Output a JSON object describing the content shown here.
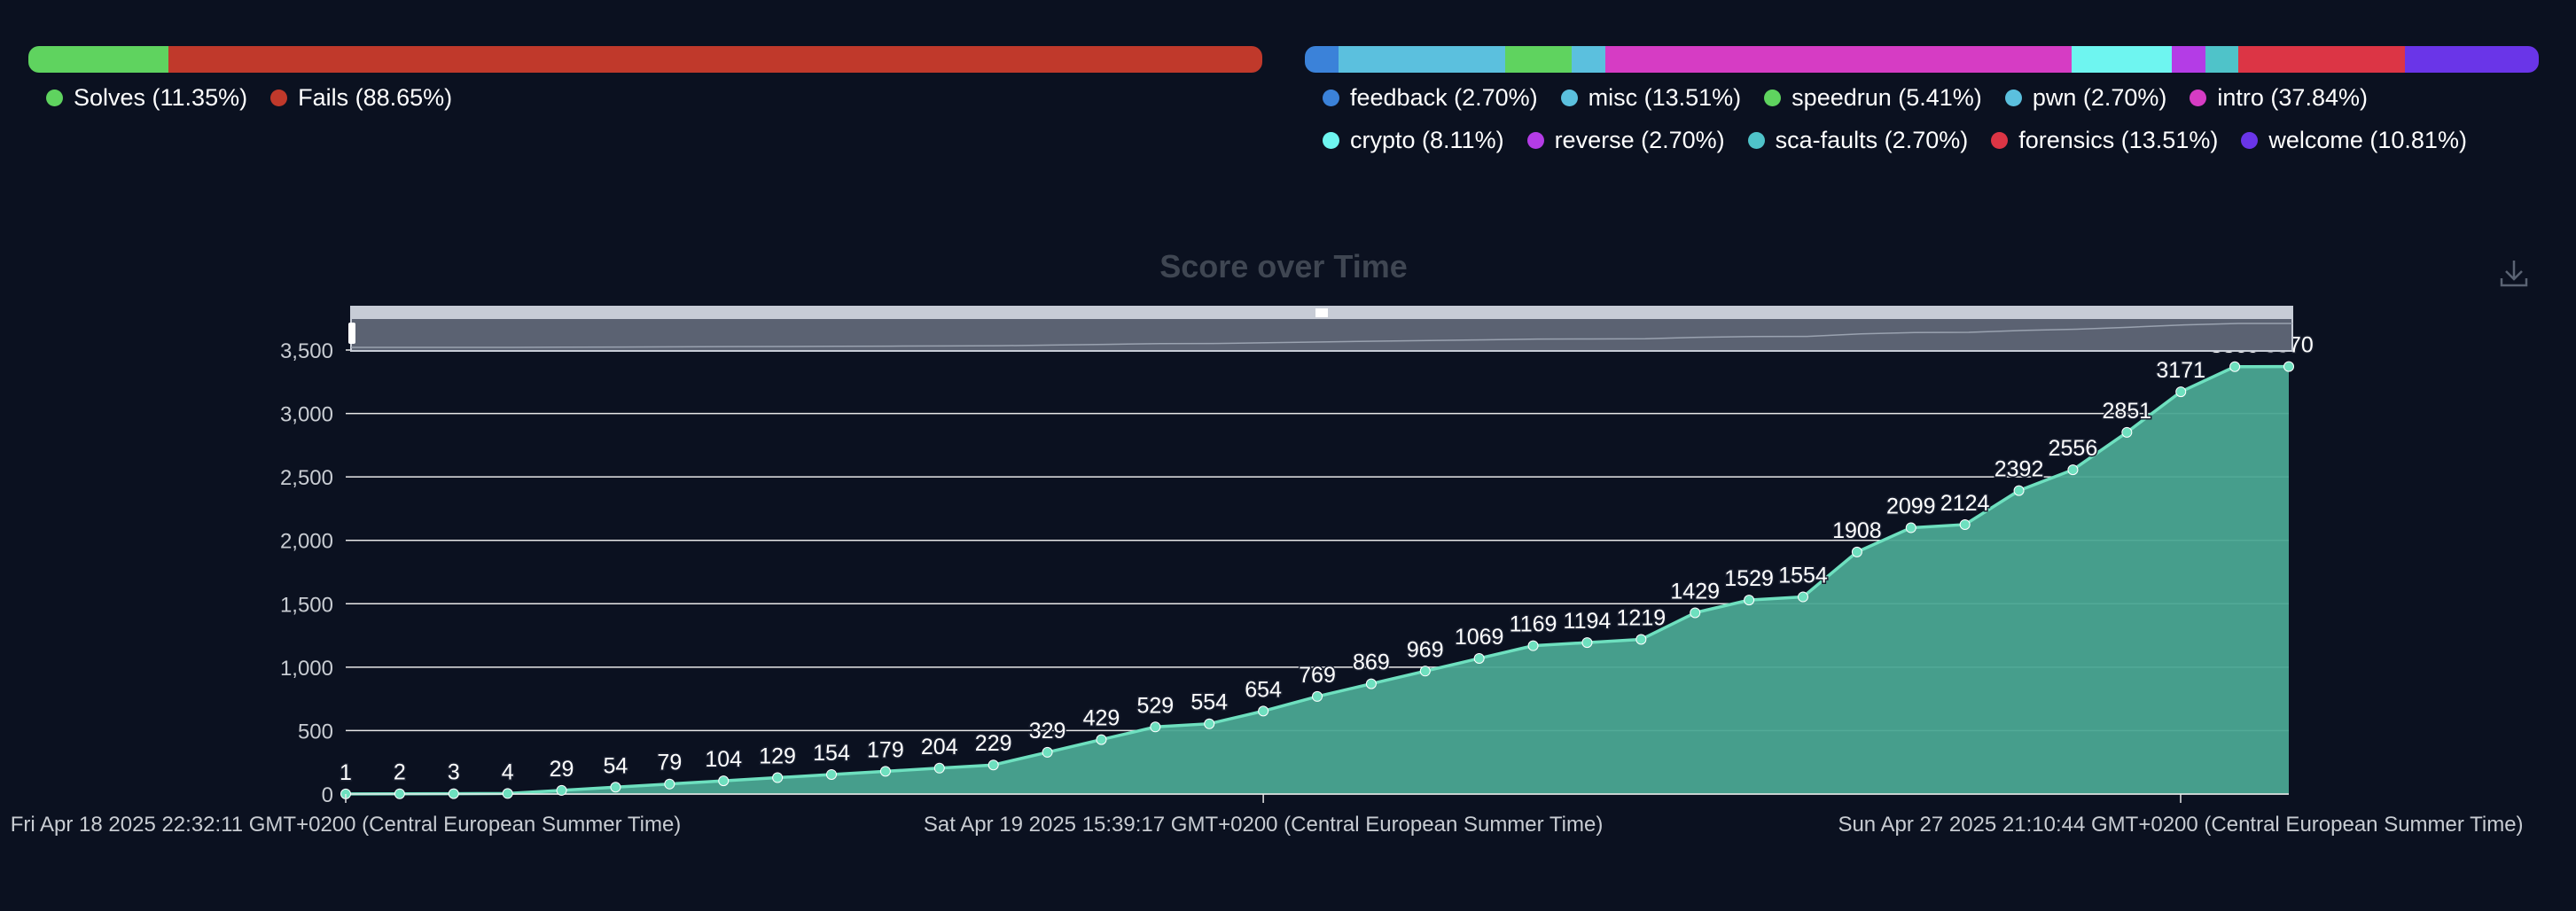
{
  "solves_fails": {
    "segments": [
      {
        "label": "Solves (11.35%)",
        "percent": 11.35,
        "color": "#5fd35f"
      },
      {
        "label": "Fails (88.65%)",
        "percent": 88.65,
        "color": "#c0392b"
      }
    ]
  },
  "categories": {
    "segments": [
      {
        "label": "feedback (2.70%)",
        "percent": 2.7,
        "color": "#3b82d9"
      },
      {
        "label": "misc (13.51%)",
        "percent": 13.51,
        "color": "#5bc0de"
      },
      {
        "label": "speedrun (5.41%)",
        "percent": 5.41,
        "color": "#5fd35f"
      },
      {
        "label": "pwn (2.70%)",
        "percent": 2.7,
        "color": "#5bc0de"
      },
      {
        "label": "intro (37.84%)",
        "percent": 37.84,
        "color": "#d63cc4"
      },
      {
        "label": "crypto (8.11%)",
        "percent": 8.11,
        "color": "#6ef5f0"
      },
      {
        "label": "reverse (2.70%)",
        "percent": 2.7,
        "color": "#b43ce6"
      },
      {
        "label": "sca-faults (2.70%)",
        "percent": 2.7,
        "color": "#4fc3c9"
      },
      {
        "label": "forensics (13.51%)",
        "percent": 13.51,
        "color": "#dc3545"
      },
      {
        "label": "welcome (10.81%)",
        "percent": 10.81,
        "color": "#6a35e8"
      }
    ]
  },
  "chart_data": {
    "type": "area",
    "title": "Score over Time",
    "xlabel": "",
    "ylabel": "",
    "ylim": [
      0,
      3500
    ],
    "yticks": [
      0,
      500,
      1000,
      1500,
      2000,
      2500,
      3000,
      3500
    ],
    "ytick_labels": [
      "0",
      "500",
      "1,000",
      "1,500",
      "2,000",
      "2,500",
      "3,000",
      "3,500"
    ],
    "xtick_labels": [
      "Fri Apr 18 2025 22:32:11 GMT+0200 (Central European Summer Time)",
      "Sat Apr 19 2025 15:39:17 GMT+0200 (Central European Summer Time)",
      "Sun Apr 27 2025 21:10:44 GMT+0200 (Central European Summer Time)"
    ],
    "xtick_indices": [
      0,
      17,
      34
    ],
    "values": [
      1,
      2,
      3,
      4,
      29,
      54,
      79,
      104,
      129,
      154,
      179,
      204,
      229,
      329,
      429,
      529,
      554,
      654,
      769,
      869,
      969,
      1069,
      1169,
      1194,
      1219,
      1429,
      1529,
      1554,
      1908,
      2099,
      2124,
      2392,
      2556,
      2851,
      3171,
      3369,
      3370
    ],
    "grid": true,
    "series_color": "#6ee0bf",
    "area_color": "#4aa792"
  }
}
